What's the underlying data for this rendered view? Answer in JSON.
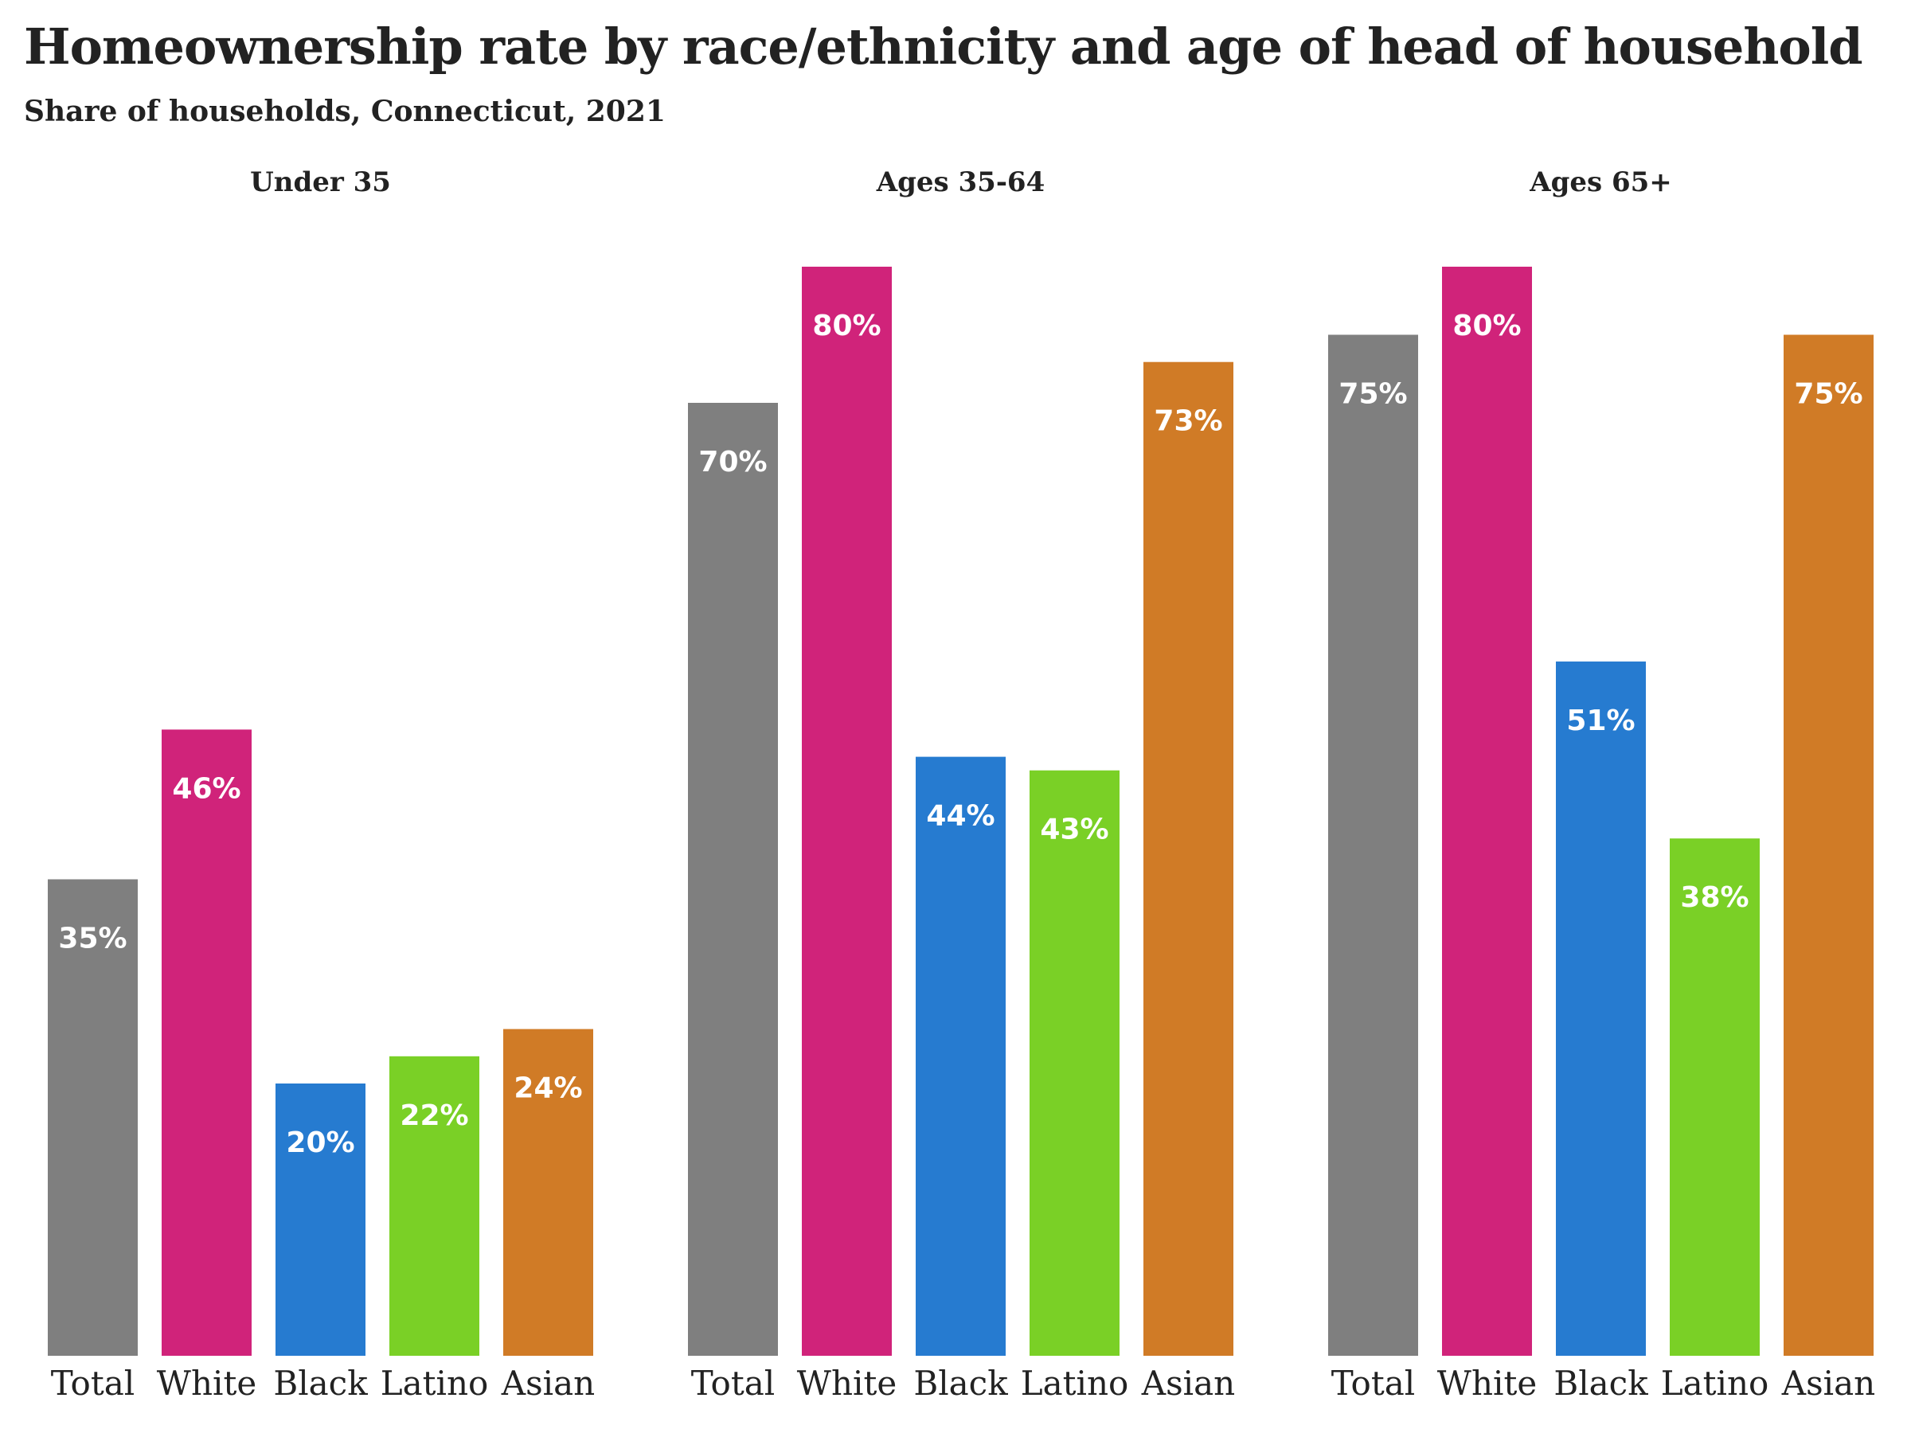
{
  "title": "Homeownership rate by race/ethnicity and age of head of household",
  "subtitle": "Share of households, Connecticut, 2021",
  "chart_data": {
    "type": "bar",
    "title": "Homeownership rate by race/ethnicity and age of head of household",
    "subtitle": "Share of households, Connecticut, 2021",
    "value_suffix": "%",
    "ylim": [
      0,
      80
    ],
    "grid": false,
    "legend": "none",
    "categories": [
      "Total",
      "White",
      "Black",
      "Latino",
      "Asian"
    ],
    "colors": {
      "Total": "#7f7f7f",
      "White": "#d0237a",
      "Black": "#267bd0",
      "Latino": "#7ad026",
      "Asian": "#d07b26"
    },
    "panels": [
      {
        "title": "Under 35",
        "values": [
          35,
          46,
          20,
          22,
          24
        ]
      },
      {
        "title": "Ages 35-64",
        "values": [
          70,
          80,
          44,
          43,
          73
        ]
      },
      {
        "title": "Ages 65+",
        "values": [
          75,
          80,
          51,
          38,
          75
        ]
      }
    ]
  }
}
